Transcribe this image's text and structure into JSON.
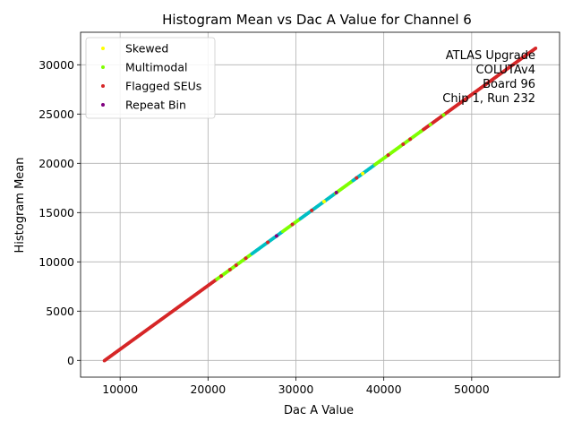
{
  "chart_data": {
    "type": "scatter",
    "title": "Histogram Mean vs Dac A Value for Channel 6",
    "xlabel": "Dac A Value",
    "ylabel": "Histogram Mean",
    "xlim": [
      5500,
      60000
    ],
    "ylim": [
      -1700,
      33300
    ],
    "xticks": [
      10000,
      20000,
      30000,
      40000,
      50000
    ],
    "yticks": [
      0,
      5000,
      10000,
      15000,
      20000,
      25000,
      30000
    ],
    "grid": true,
    "legend_position": "top-left",
    "annotation_lines": [
      "ATLAS Upgrade",
      "COLUTAv4",
      "Board 96",
      "Chip 1, Run 232"
    ],
    "fit": {
      "slope": 0.6461,
      "intercept": -5330
    },
    "series": [
      {
        "name": "Skewed",
        "color": "#ffff00"
      },
      {
        "name": "Multimodal",
        "color": "#7fff00"
      },
      {
        "name": "Flagged SEUs",
        "color": "#d62728"
      },
      {
        "name": "Repeat Bin",
        "color": "#800080"
      }
    ],
    "bands": [
      {
        "x_range": [
          8200,
          21000
        ],
        "color": "#d62728"
      },
      {
        "x_range": [
          21000,
          25000
        ],
        "color": "#7fff00"
      },
      {
        "x_range": [
          25000,
          28500
        ],
        "color": "#00bfc4"
      },
      {
        "x_range": [
          28500,
          30500
        ],
        "color": "#7fff00"
      },
      {
        "x_range": [
          30500,
          34500
        ],
        "color": "#00bfc4"
      },
      {
        "x_range": [
          34500,
          36500
        ],
        "color": "#7fff00"
      },
      {
        "x_range": [
          36500,
          39000
        ],
        "color": "#00bfc4"
      },
      {
        "x_range": [
          39000,
          44500
        ],
        "color": "#7fff00"
      },
      {
        "x_range": [
          44500,
          57300
        ],
        "color": "#d62728"
      }
    ],
    "highlight_points": [
      {
        "x": 21500,
        "color": "#d62728"
      },
      {
        "x": 22500,
        "color": "#d62728"
      },
      {
        "x": 23200,
        "color": "#d62728"
      },
      {
        "x": 24300,
        "color": "#d62728"
      },
      {
        "x": 26800,
        "color": "#d62728"
      },
      {
        "x": 27800,
        "color": "#800080"
      },
      {
        "x": 29600,
        "color": "#d62728"
      },
      {
        "x": 33200,
        "color": "#ffff00"
      },
      {
        "x": 34600,
        "color": "#800080"
      },
      {
        "x": 36900,
        "color": "#d62728"
      },
      {
        "x": 37600,
        "color": "#ffff00"
      },
      {
        "x": 40500,
        "color": "#d62728"
      },
      {
        "x": 42200,
        "color": "#d62728"
      },
      {
        "x": 43000,
        "color": "#d62728"
      },
      {
        "x": 44200,
        "color": "#7fff00"
      },
      {
        "x": 45300,
        "color": "#7fff00"
      },
      {
        "x": 46800,
        "color": "#7fff00"
      },
      {
        "x": 31800,
        "color": "#d62728"
      }
    ]
  }
}
